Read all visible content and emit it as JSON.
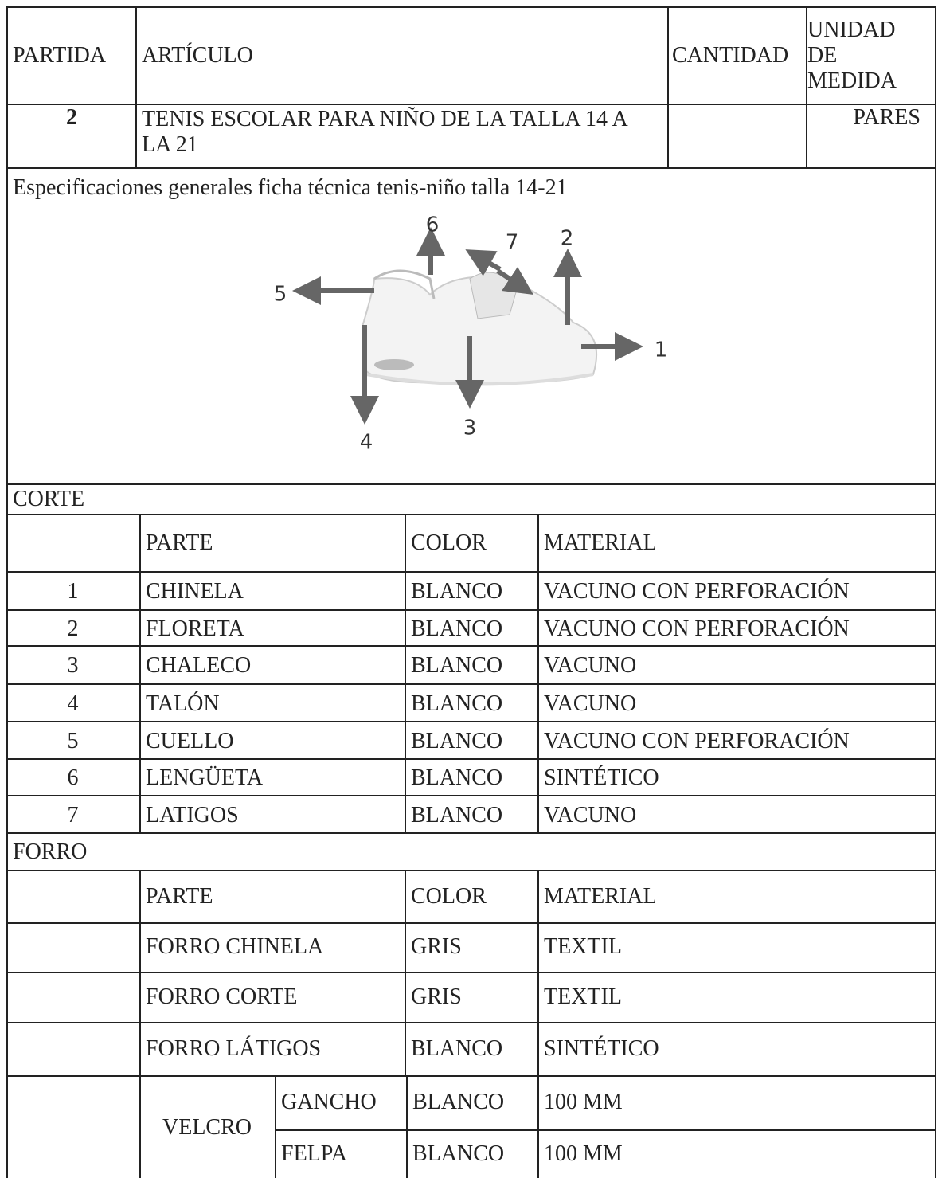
{
  "header": {
    "partida": "PARTIDA",
    "articulo": "ARTÍCULO",
    "cantidad": "CANTIDAD",
    "unidad": "UNIDAD DE MEDIDA"
  },
  "item": {
    "partida": "2",
    "articulo": "TENIS ESCOLAR PARA NIÑO DE LA TALLA 14 A LA 21",
    "unidad": "PARES"
  },
  "specs_title": "Especificaciones generales ficha técnica tenis-niño talla 14-21",
  "diagram": {
    "labels": [
      "1",
      "2",
      "3",
      "4",
      "5",
      "6",
      "7"
    ]
  },
  "corte": {
    "title": "CORTE",
    "header": [
      "PARTE",
      "COLOR",
      "MATERIAL"
    ],
    "rows": [
      [
        "1",
        "CHINELA",
        "BLANCO",
        "VACUNO CON PERFORACIÓN"
      ],
      [
        "2",
        "FLORETA",
        "BLANCO",
        "VACUNO CON PERFORACIÓN"
      ],
      [
        "3",
        "CHALECO",
        "BLANCO",
        "VACUNO"
      ],
      [
        "4",
        "TALÓN",
        "BLANCO",
        "VACUNO"
      ],
      [
        "5",
        "CUELLO",
        "BLANCO",
        "VACUNO CON PERFORACIÓN"
      ],
      [
        "6",
        "LENGÜETA",
        "BLANCO",
        "SINTÉTICO"
      ],
      [
        "7",
        "LATIGOS",
        "BLANCO",
        "VACUNO"
      ]
    ]
  },
  "forro": {
    "title": "FORRO",
    "header": [
      "PARTE",
      "COLOR",
      "MATERIAL"
    ],
    "rows": [
      [
        "FORRO CHINELA",
        "GRIS",
        "TEXTIL"
      ],
      [
        "FORRO CORTE",
        "GRIS",
        "TEXTIL"
      ],
      [
        "FORRO LÁTIGOS",
        "BLANCO",
        "SINTÉTICO"
      ]
    ],
    "velcro": {
      "label": "VELCRO",
      "rows": [
        [
          "GANCHO",
          "BLANCO",
          "100 MM"
        ],
        [
          "FELPA",
          "BLANCO",
          "100 MM"
        ]
      ]
    }
  }
}
